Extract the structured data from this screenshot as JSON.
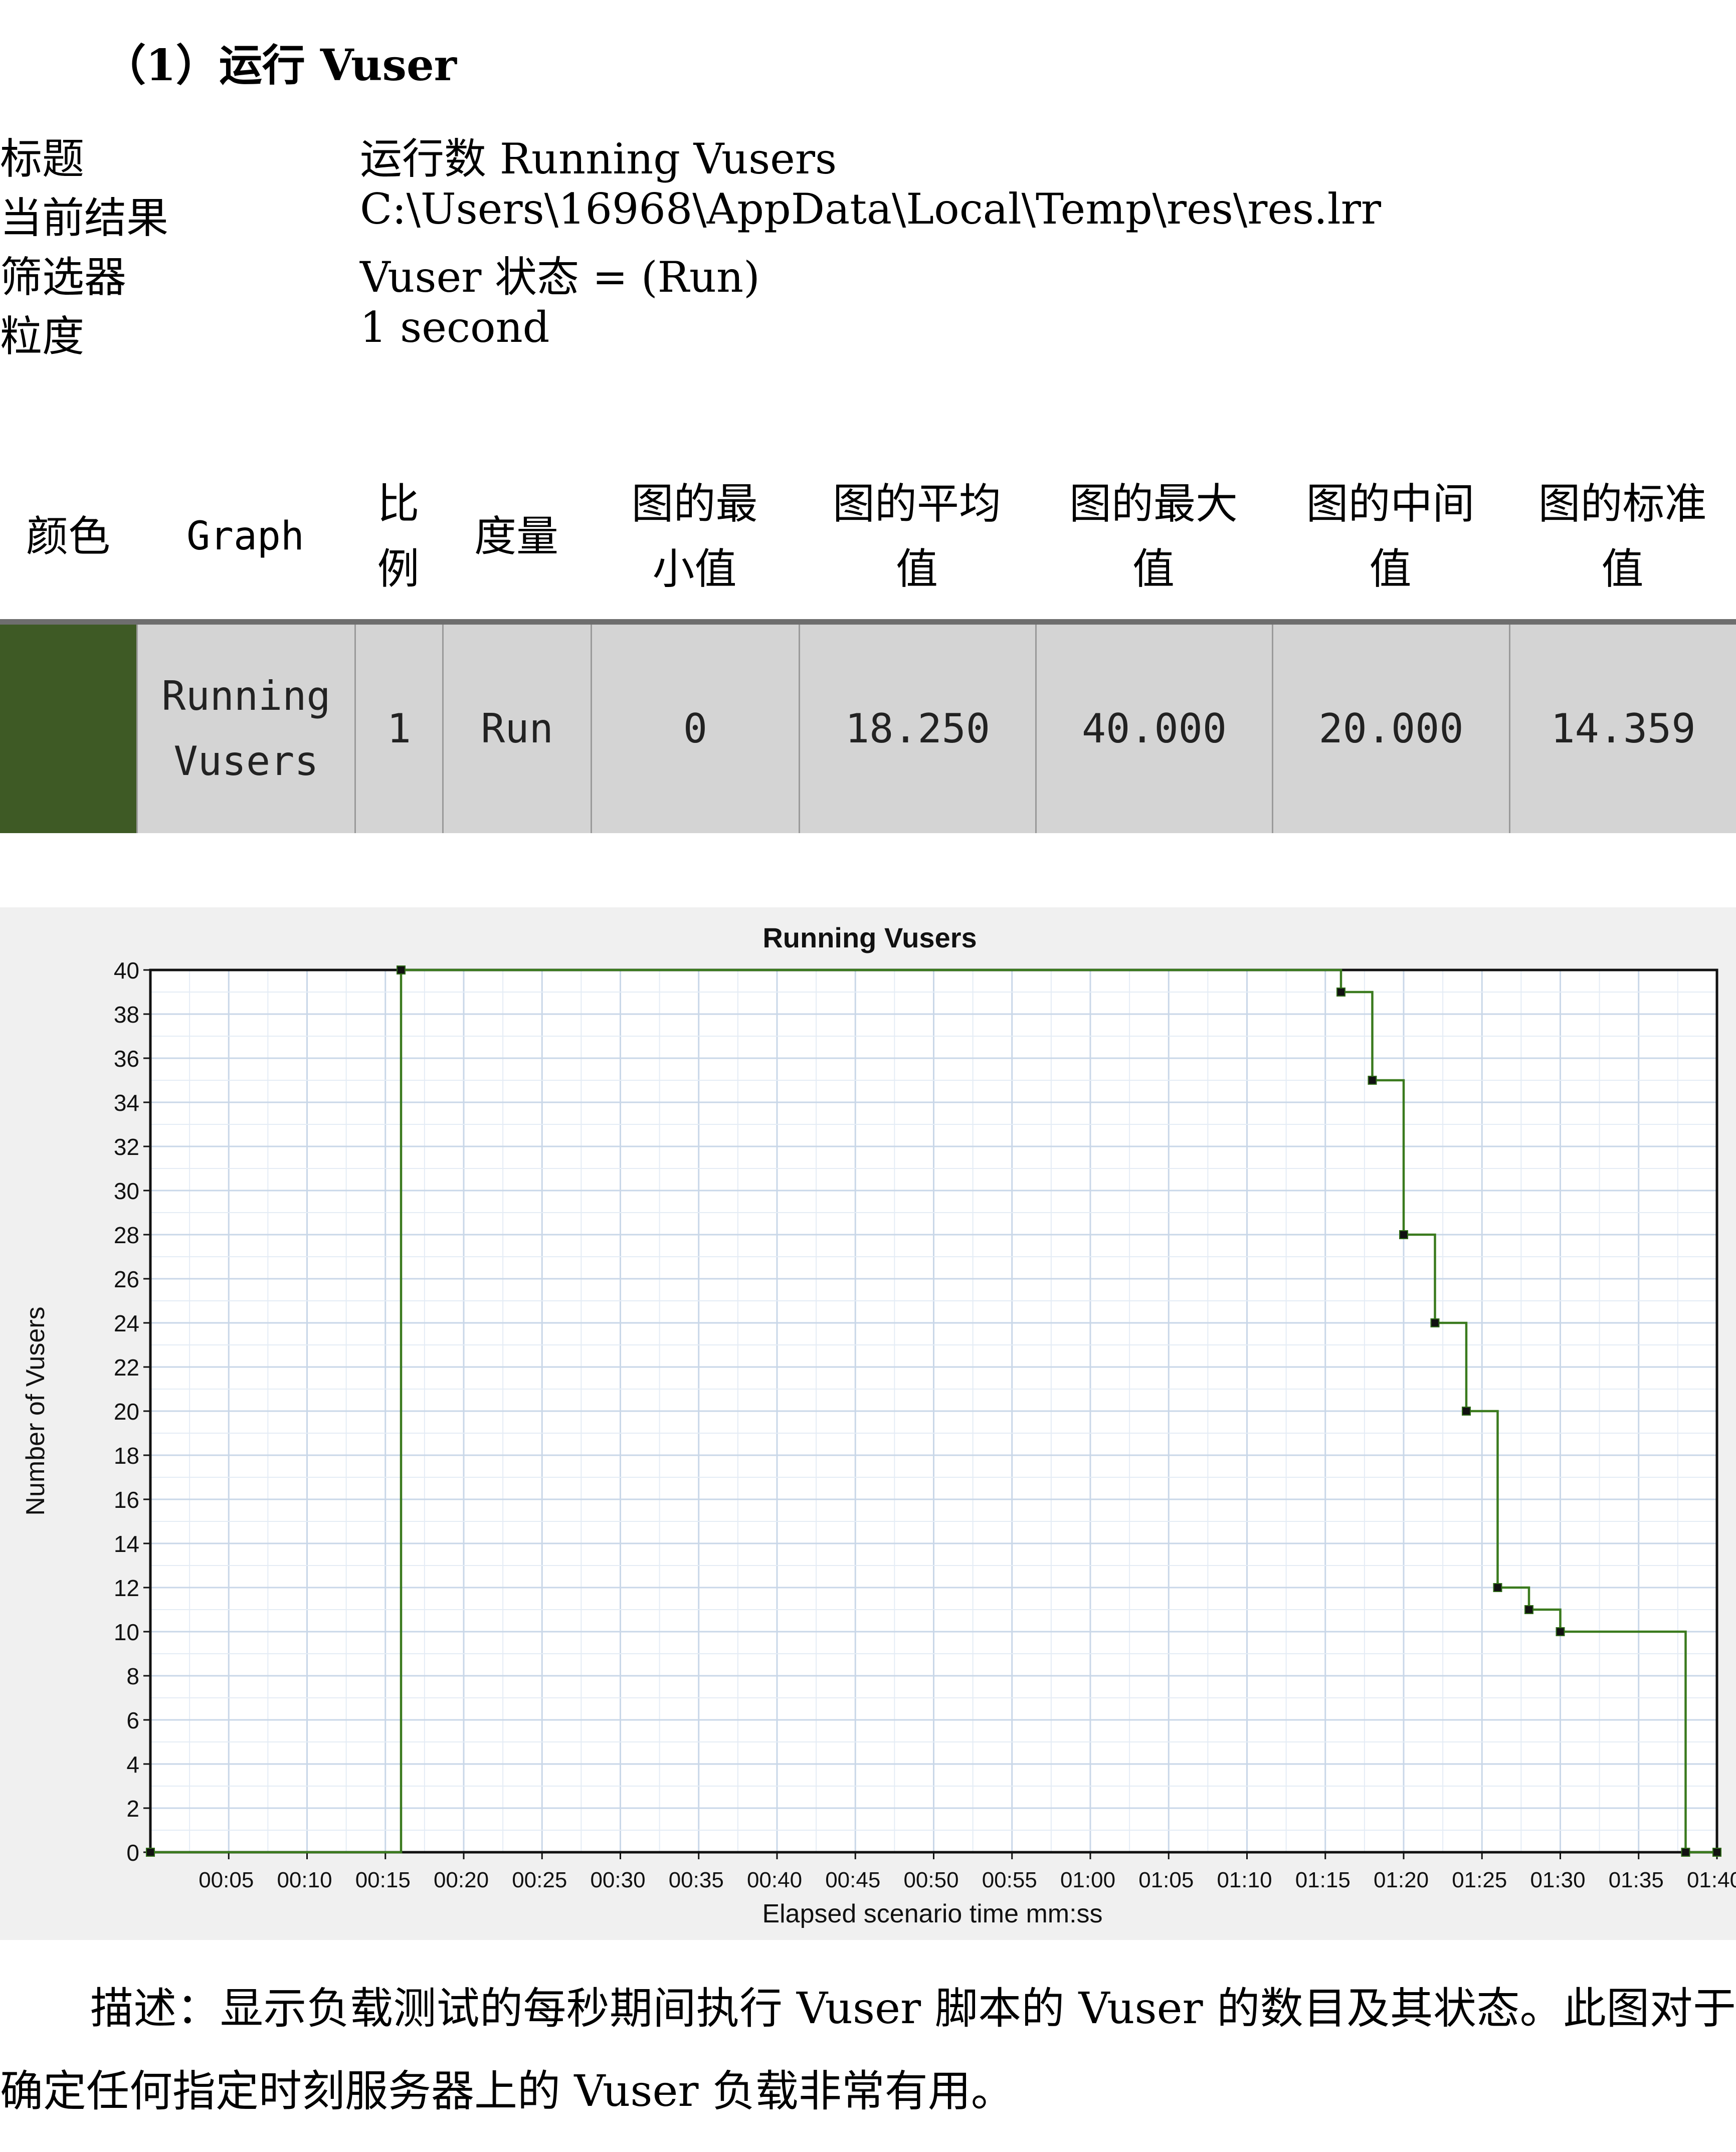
{
  "heading": "（1）运行 Vuser",
  "meta": [
    {
      "key": "标题",
      "value": "运行数 Running Vusers"
    },
    {
      "key": "当前结果",
      "value": "C:\\Users\\16968\\AppData\\Local\\Temp\\res\\res.lrr"
    },
    {
      "key": "筛选器",
      "value": "Vuser 状态 = (Run)"
    },
    {
      "key": "粒度",
      "value": "1 second"
    }
  ],
  "table": {
    "headers": [
      "颜色",
      "Graph",
      "比例",
      "度量",
      "图的最小值",
      "图的平均值",
      "图的最大值",
      "图的中间值",
      "图的标准值"
    ],
    "row": {
      "color": "#3e5a25",
      "graph": "Running Vusers",
      "scale": "1",
      "measure": "Run",
      "min": "0",
      "avg": "18.250",
      "max": "40.000",
      "median": "20.000",
      "std": "14.359"
    }
  },
  "chart_data": {
    "type": "line",
    "title": "Running Vusers",
    "xlabel": "Elapsed scenario time mm:ss",
    "ylabel": "Number of Vusers",
    "xlim": [
      0,
      100
    ],
    "ylim": [
      0,
      40
    ],
    "grid": true,
    "step": true,
    "line_color": "#3a7a1e",
    "marker_color": "#111111",
    "x_ticks": [
      "00:05",
      "00:10",
      "00:15",
      "00:20",
      "00:25",
      "00:30",
      "00:35",
      "00:40",
      "00:45",
      "00:50",
      "00:55",
      "01:00",
      "01:05",
      "01:10",
      "01:15",
      "01:20",
      "01:25",
      "01:30",
      "01:35",
      "01:40"
    ],
    "y_ticks": [
      0,
      2,
      4,
      6,
      8,
      10,
      12,
      14,
      16,
      18,
      20,
      22,
      24,
      26,
      28,
      30,
      32,
      34,
      36,
      38,
      40
    ],
    "series": [
      {
        "x": [
          0,
          16,
          76,
          78,
          80,
          82,
          84,
          86,
          88,
          90,
          98,
          100
        ],
        "y": [
          0,
          40,
          39,
          35,
          28,
          24,
          20,
          12,
          11,
          10,
          0,
          0
        ]
      }
    ]
  },
  "description": {
    "line1": "描述：显示负载测试的每秒期间执行 Vuser 脚本的 Vuser 的数目及其状态。此图对于确定任何指定时刻服务器上的 Vuser 负载非常有用。"
  }
}
